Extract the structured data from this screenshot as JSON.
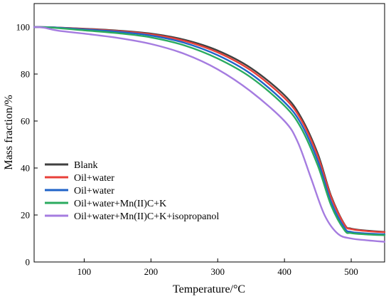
{
  "chart_data": {
    "type": "line",
    "xlabel": "Temperature/°C",
    "ylabel": "Mass fraction/%",
    "xlim": [
      25,
      550
    ],
    "ylim": [
      0,
      110
    ],
    "xticks": [
      100,
      200,
      300,
      400,
      500
    ],
    "yticks": [
      0,
      20,
      40,
      60,
      80,
      100
    ],
    "grid": false,
    "legend_position": "bottom-left",
    "series": [
      {
        "name": "Blank",
        "color": "#404040",
        "x": [
          25,
          50,
          100,
          150,
          200,
          250,
          300,
          350,
          400,
          425,
          450,
          470,
          490,
          500,
          525,
          550
        ],
        "y": [
          100,
          99.9,
          99.3,
          98.5,
          97.2,
          94.6,
          90.0,
          82.5,
          71.0,
          61.5,
          46.0,
          28.0,
          16.0,
          14.2,
          13.3,
          12.8
        ]
      },
      {
        "name": "Oil+water",
        "color": "#e8403a",
        "x": [
          25,
          50,
          100,
          150,
          200,
          250,
          300,
          350,
          400,
          425,
          450,
          470,
          490,
          500,
          525,
          550
        ],
        "y": [
          100,
          99.9,
          99.2,
          98.3,
          96.9,
          94.1,
          89.2,
          81.5,
          69.8,
          60.5,
          45.0,
          27.5,
          15.8,
          14.0,
          13.1,
          12.7
        ]
      },
      {
        "name": "Oil+water",
        "color": "#1f63c8",
        "x": [
          25,
          50,
          100,
          150,
          200,
          250,
          300,
          350,
          400,
          425,
          450,
          470,
          490,
          500,
          525,
          550
        ],
        "y": [
          100,
          99.9,
          99.0,
          98.0,
          96.4,
          93.3,
          88.0,
          80.0,
          68.0,
          58.8,
          43.0,
          25.5,
          14.5,
          12.8,
          12.1,
          11.8
        ]
      },
      {
        "name": "Oil+water+Mn(II)C+K",
        "color": "#2bab5f",
        "x": [
          25,
          50,
          100,
          150,
          200,
          250,
          300,
          350,
          400,
          425,
          450,
          470,
          490,
          500,
          525,
          550
        ],
        "y": [
          100,
          99.8,
          98.6,
          97.4,
          95.6,
          92.2,
          86.6,
          78.5,
          66.5,
          57.0,
          41.0,
          24.0,
          13.5,
          12.3,
          11.7,
          11.4
        ]
      },
      {
        "name": "Oil+water+Mn(II)C+K+isopropanol",
        "color": "#a57ce0",
        "x": [
          25,
          40,
          60,
          100,
          150,
          200,
          250,
          300,
          350,
          400,
          420,
          440,
          460,
          480,
          500,
          525,
          550
        ],
        "y": [
          100,
          99.7,
          98.5,
          97.2,
          95.4,
          92.8,
          88.6,
          82.0,
          72.5,
          60.0,
          51.0,
          35.5,
          20.0,
          12.0,
          10.0,
          9.2,
          8.6
        ]
      }
    ]
  }
}
